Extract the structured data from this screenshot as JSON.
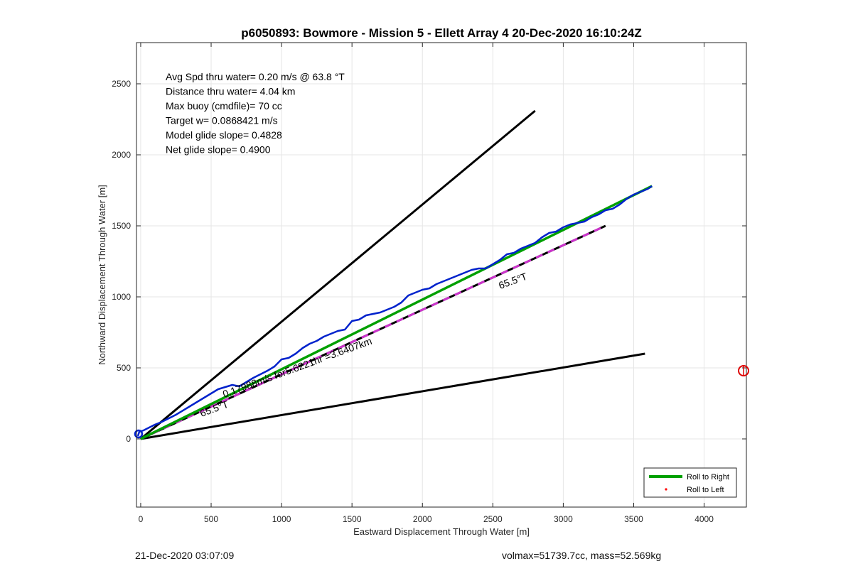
{
  "chart_data": {
    "type": "line",
    "title": "p6050893: Bowmore - Mission 5 - Ellett Array 4 20-Dec-2020 16:10:24Z",
    "xlabel": "Eastward Displacement Through Water [m]",
    "ylabel": "Northward Displacement Through Water [m]",
    "xlim": [
      -30,
      4300
    ],
    "ylim": [
      -480,
      2790
    ],
    "xticks": [
      0,
      500,
      1000,
      1500,
      2000,
      2500,
      3000,
      3500,
      4000
    ],
    "yticks": [
      0,
      500,
      1000,
      1500,
      2000,
      2500
    ],
    "grid": true,
    "stats_text": [
      "Avg Spd thru water=  0.20 m/s @  63.8 °T",
      "Distance thru water=  4.04 km",
      "Max buoy (cmdfile)= 70 cc",
      "Target w= 0.0868421 m/s",
      "Model glide slope= 0.4828",
      "Net glide slope= 0.4900"
    ],
    "annotations": [
      {
        "text": "65.5°T",
        "x": 2650,
        "y": 1090,
        "rotation_deg": -20
      },
      {
        "text": "0.17988m/s for5.6221hr =3.6407km",
        "x": 1120,
        "y": 480,
        "rotation_deg": -20
      },
      {
        "text": "65.5°T",
        "x": 530,
        "y": 190,
        "rotation_deg": -20
      }
    ],
    "reference_lines": [
      {
        "name": "upper",
        "color": "#000000",
        "x": [
          0,
          2800
        ],
        "y": [
          0,
          2310
        ]
      },
      {
        "name": "lower",
        "color": "#000000",
        "x": [
          0,
          3580
        ],
        "y": [
          0,
          600
        ]
      },
      {
        "name": "heading",
        "color": "#000000",
        "dash_color": "#cc33cc",
        "x": [
          0,
          3300
        ],
        "y": [
          0,
          1500
        ]
      }
    ],
    "series": [
      {
        "name": "Roll to Right",
        "color": "#00a000",
        "x": [
          0,
          3630
        ],
        "y": [
          0,
          1780
        ]
      },
      {
        "color": "#0022cc",
        "x": [
          -20,
          -10,
          20,
          60,
          100,
          150,
          250,
          350,
          450,
          550,
          650,
          700,
          800,
          900,
          950,
          1000,
          1050,
          1100,
          1150,
          1200,
          1250,
          1300,
          1350,
          1400,
          1450,
          1500,
          1550,
          1600,
          1650,
          1700,
          1750,
          1800,
          1850,
          1900,
          1950,
          2000,
          2050,
          2100,
          2150,
          2200,
          2250,
          2300,
          2350,
          2400,
          2450,
          2500,
          2550,
          2600,
          2650,
          2700,
          2750,
          2800,
          2850,
          2900,
          2950,
          3000,
          3050,
          3100,
          3150,
          3200,
          3250,
          3300,
          3350,
          3400,
          3450,
          3500,
          3550,
          3600,
          3630
        ],
        "y": [
          20,
          50,
          60,
          80,
          100,
          120,
          170,
          230,
          290,
          350,
          380,
          370,
          430,
          480,
          510,
          560,
          570,
          600,
          640,
          670,
          690,
          720,
          740,
          760,
          770,
          830,
          840,
          870,
          880,
          890,
          910,
          930,
          960,
          1010,
          1030,
          1050,
          1060,
          1090,
          1110,
          1130,
          1150,
          1170,
          1190,
          1200,
          1200,
          1230,
          1260,
          1300,
          1310,
          1340,
          1360,
          1380,
          1420,
          1450,
          1460,
          1490,
          1510,
          1520,
          1530,
          1560,
          1580,
          1610,
          1620,
          1650,
          1690,
          1720,
          1740,
          1760,
          1780
        ]
      },
      {
        "name": "Roll to Left",
        "color": "#ff0000",
        "x": [],
        "y": []
      }
    ],
    "outlier_marker": {
      "color": "#dd0000",
      "x": 4280,
      "y": 480
    },
    "legend": {
      "position": "bottom-right",
      "entries": [
        "Roll to Right",
        "Roll to Left"
      ]
    }
  },
  "footer": {
    "left": "21-Dec-2020 03:07:09",
    "right": "volmax=51739.7cc, mass=52.569kg"
  }
}
